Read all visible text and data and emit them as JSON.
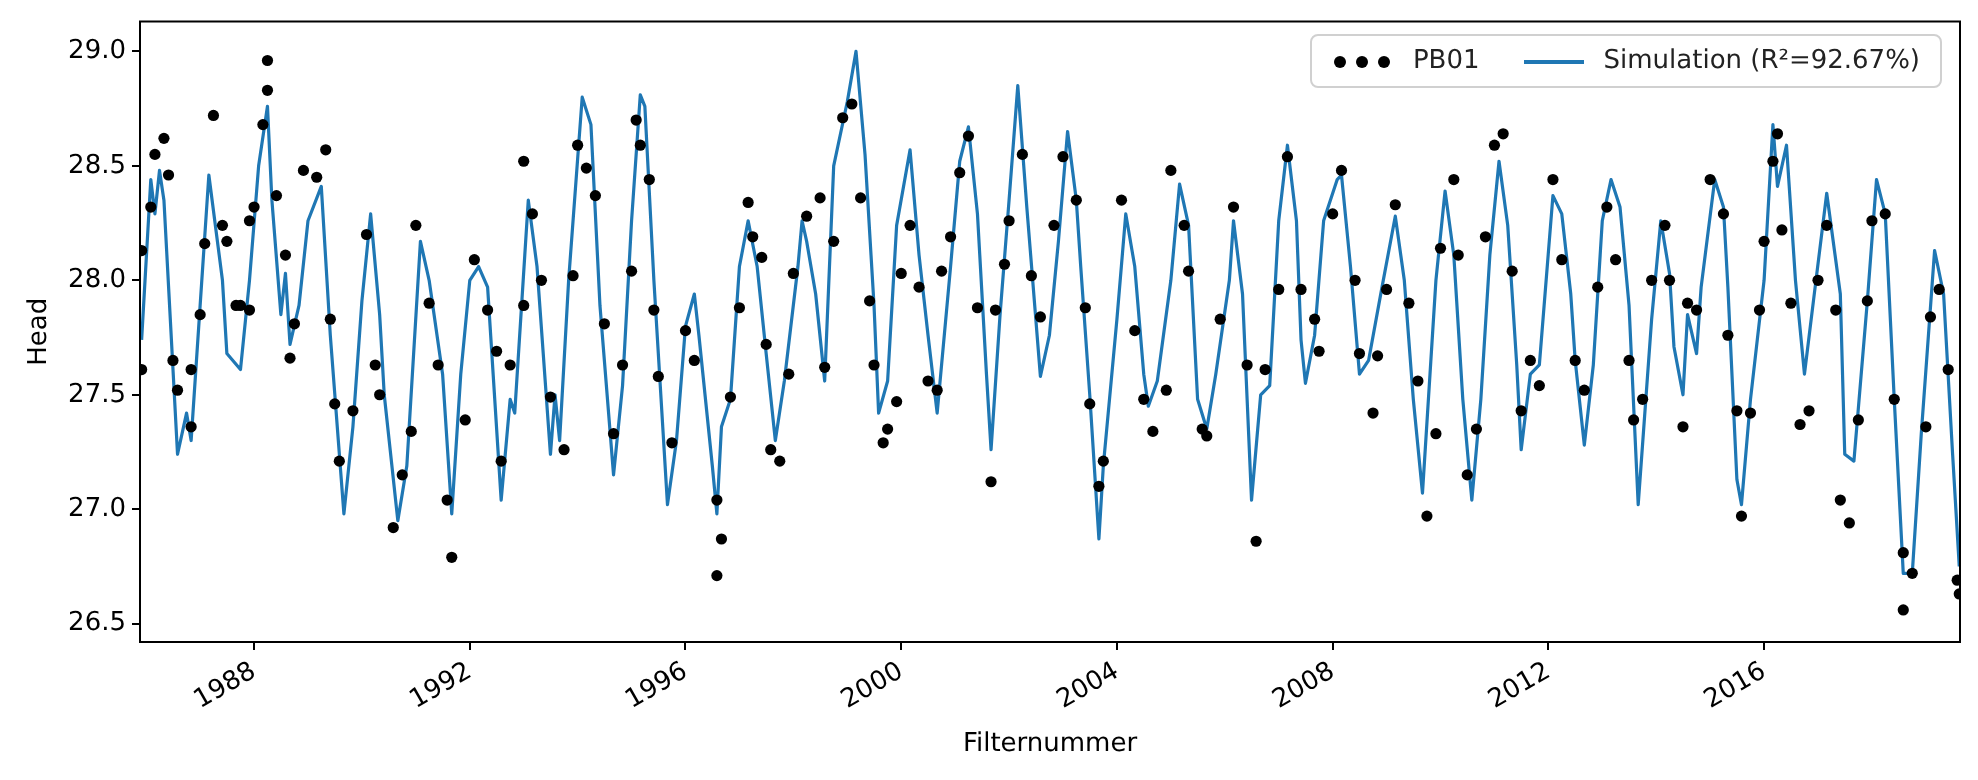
{
  "chart_data": {
    "type": "scatter",
    "xlabel": "Filternummer",
    "ylabel": "Head",
    "legend": "top right",
    "xlim": [
      "1985-11-20",
      "2019-08-20"
    ],
    "xticks": [
      "1988",
      "1992",
      "1996",
      "2000",
      "2004",
      "2008",
      "2012",
      "2016"
    ],
    "ylim": [
      26.42,
      29.13
    ],
    "yticks": [
      26.5,
      {
        "value": 27,
        "label": "27.0"
      },
      27.5,
      {
        "value": 28,
        "label": "28.0"
      },
      28.5,
      {
        "value": 29,
        "label": "29.0"
      }
    ],
    "series": [
      {
        "name": "PB01",
        "type": "scatter",
        "marker": "circle",
        "color": "#000000",
        "x": [
          "1985-12",
          "1985-12",
          "1986-03",
          "1986-05",
          "1986-02",
          "1986-06",
          "1986-07",
          "1986-08",
          "1986-11",
          "1986-11",
          "1987-01",
          "1987-02",
          "1987-04",
          "1987-06",
          "1987-07",
          "1987-09",
          "1987-10",
          "1987-12",
          "1987-12",
          "1988-01",
          "1988-03",
          "1988-04",
          "1988-04",
          "1988-06",
          "1988-08",
          "1988-09",
          "1988-10",
          "1988-12",
          "1989-03",
          "1989-05",
          "1989-06",
          "1989-07",
          "1989-08",
          "1989-11",
          "1990-02",
          "1990-04",
          "1990-05",
          "1990-08",
          "1990-10",
          "1990-12",
          "1991-01",
          "1991-04",
          "1991-06",
          "1991-08",
          "1991-09",
          "1991-12",
          "1992-02",
          "1992-05",
          "1992-07",
          "1992-08",
          "1992-10",
          "1993-01",
          "1993-01",
          "1993-03",
          "1993-05",
          "1993-07",
          "1993-10",
          "1993-12",
          "1994-01",
          "1994-03",
          "1994-05",
          "1994-07",
          "1994-09",
          "1994-11",
          "1995-01",
          "1995-02",
          "1995-03",
          "1995-05",
          "1995-06",
          "1995-07",
          "1995-10",
          "1996-01",
          "1996-03",
          "1996-08",
          "1996-08",
          "1996-09",
          "1996-11",
          "1997-01",
          "1997-03",
          "1997-04",
          "1997-06",
          "1997-07",
          "1997-08",
          "1997-10",
          "1997-12",
          "1998-01",
          "1998-04",
          "1998-07",
          "1998-08",
          "1998-10",
          "1998-12",
          "1999-02",
          "1999-04",
          "1999-06",
          "1999-07",
          "1999-09",
          "1999-10",
          "1999-12",
          "2000-01",
          "2000-03",
          "2000-05",
          "2000-07",
          "2000-09",
          "2000-10",
          "2000-12",
          "2001-02",
          "2001-04",
          "2001-06",
          "2001-09",
          "2001-10",
          "2001-12",
          "2002-01",
          "2002-04",
          "2002-06",
          "2002-08",
          "2002-11",
          "2003-01",
          "2003-04",
          "2003-06",
          "2003-07",
          "2003-09",
          "2003-10",
          "2004-02",
          "2004-05",
          "2004-07",
          "2004-09",
          "2004-12",
          "2005-01",
          "2005-04",
          "2005-05",
          "2005-08",
          "2005-09",
          "2005-12",
          "2006-03",
          "2006-06",
          "2006-08",
          "2006-10",
          "2007-01",
          "2007-03",
          "2007-06",
          "2007-09",
          "2007-10",
          "2008-01",
          "2008-03",
          "2008-06",
          "2008-07",
          "2008-10",
          "2008-11",
          "2009-01",
          "2009-03",
          "2009-06",
          "2009-08",
          "2009-10",
          "2009-12",
          "2010-01",
          "2010-04",
          "2010-05",
          "2010-07",
          "2010-09",
          "2010-11",
          "2011-01",
          "2011-03",
          "2011-05",
          "2011-07",
          "2011-09",
          "2011-11",
          "2012-02",
          "2012-04",
          "2012-07",
          "2012-09",
          "2012-12",
          "2013-02",
          "2013-04",
          "2013-07",
          "2013-08",
          "2013-10",
          "2013-12",
          "2014-03",
          "2014-04",
          "2014-07",
          "2014-08",
          "2014-10",
          "2015-01",
          "2015-04",
          "2015-05",
          "2015-07",
          "2015-08",
          "2015-10",
          "2015-12",
          "2016-01",
          "2016-03",
          "2016-04",
          "2016-05",
          "2016-07",
          "2016-09",
          "2016-11",
          "2017-01",
          "2017-03",
          "2017-05",
          "2017-06",
          "2017-08",
          "2017-10",
          "2017-12",
          "2018-01",
          "2018-04",
          "2018-06",
          "2018-08",
          "2018-08",
          "2018-10",
          "2019-01",
          "2019-02",
          "2019-04",
          "2019-06",
          "2019-08-01",
          "2019-08-15"
        ],
        "values": [
          27.61,
          28.13,
          28.55,
          28.62,
          28.32,
          28.46,
          27.65,
          27.52,
          27.36,
          27.61,
          27.85,
          28.16,
          28.72,
          28.24,
          28.17,
          27.89,
          27.89,
          27.87,
          28.26,
          28.32,
          28.68,
          28.83,
          28.96,
          28.37,
          28.11,
          27.66,
          27.81,
          28.48,
          28.45,
          28.57,
          27.83,
          27.46,
          27.21,
          27.43,
          28.2,
          27.63,
          27.5,
          26.92,
          27.15,
          27.34,
          28.24,
          27.9,
          27.63,
          27.04,
          26.79,
          27.39,
          28.09,
          27.87,
          27.69,
          27.21,
          27.63,
          27.89,
          28.52,
          28.29,
          28.0,
          27.49,
          27.26,
          28.02,
          28.59,
          28.49,
          28.37,
          27.81,
          27.33,
          27.63,
          28.04,
          28.7,
          28.59,
          28.44,
          27.87,
          27.58,
          27.29,
          27.78,
          27.65,
          27.04,
          26.71,
          26.87,
          27.49,
          27.88,
          28.34,
          28.19,
          28.1,
          27.72,
          27.26,
          27.21,
          27.59,
          28.03,
          28.28,
          28.36,
          27.62,
          28.17,
          28.71,
          28.77,
          28.36,
          27.91,
          27.63,
          27.29,
          27.35,
          27.47,
          28.03,
          28.24,
          27.97,
          27.56,
          27.52,
          28.04,
          28.19,
          28.47,
          28.63,
          27.88,
          27.12,
          27.87,
          28.07,
          28.26,
          28.55,
          28.02,
          27.84,
          28.24,
          28.54,
          28.35,
          27.88,
          27.46,
          27.1,
          27.21,
          28.35,
          27.78,
          27.48,
          27.34,
          27.52,
          28.48,
          28.24,
          28.04,
          27.35,
          27.32,
          27.83,
          28.32,
          27.63,
          26.86,
          27.61,
          27.96,
          28.54,
          27.96,
          27.83,
          27.69,
          28.29,
          28.48,
          28.0,
          27.68,
          27.42,
          27.67,
          27.96,
          28.33,
          27.9,
          27.56,
          26.97,
          27.33,
          28.14,
          28.44,
          28.11,
          27.15,
          27.35,
          28.19,
          28.59,
          28.64,
          28.04,
          27.43,
          27.65,
          27.54,
          28.44,
          28.09,
          27.65,
          27.52,
          27.97,
          28.32,
          28.09,
          27.65,
          27.39,
          27.48,
          28.0,
          28.24,
          28.0,
          27.36,
          27.9,
          27.87,
          28.44,
          28.29,
          27.76,
          27.43,
          26.97,
          27.42,
          27.87,
          28.17,
          28.52,
          28.64,
          28.22,
          27.9,
          27.37,
          27.43,
          28.0,
          28.24,
          27.87,
          27.04,
          26.94,
          27.39,
          27.91,
          28.26,
          28.29,
          27.48,
          26.81,
          26.56,
          26.72,
          27.36,
          27.84,
          27.96,
          27.61,
          26.69,
          26.63
        ]
      },
      {
        "name": "Simulation (R²=92.67%)",
        "type": "line",
        "marker": "none",
        "color": "#1f77b4",
        "x": [
          "1985-12",
          "1986-02",
          "1986-03",
          "1986-04",
          "1986-05",
          "1986-08",
          "1986-10",
          "1986-11",
          "1987-01",
          "1987-03",
          "1987-06",
          "1987-07",
          "1987-10",
          "1987-12",
          "1988-02",
          "1988-04",
          "1988-05",
          "1988-07",
          "1988-08",
          "1988-09",
          "1988-11",
          "1989-01",
          "1989-04",
          "1989-06",
          "1989-09",
          "1989-11",
          "1990-01",
          "1990-03",
          "1990-05",
          "1990-06",
          "1990-09",
          "1990-11",
          "1991-02",
          "1991-04",
          "1991-07",
          "1991-09",
          "1991-11",
          "1992-01",
          "1992-03",
          "1992-05",
          "1992-08",
          "1992-10",
          "1992-11",
          "1993-02",
          "1993-04",
          "1993-07",
          "1993-08",
          "1993-09",
          "1993-11",
          "1994-02",
          "1994-04",
          "1994-06",
          "1994-09",
          "1994-11",
          "1995-01",
          "1995-03",
          "1995-04",
          "1995-06",
          "1995-09",
          "1995-11",
          "1996-01",
          "1996-03",
          "1996-04",
          "1996-07",
          "1996-08",
          "1996-09",
          "1996-11",
          "1997-01",
          "1997-03",
          "1997-05",
          "1997-07",
          "1997-09",
          "1997-11",
          "1998-02",
          "1998-03",
          "1998-04",
          "1998-06",
          "1998-08",
          "1998-10",
          "1999-01",
          "1999-03",
          "1999-05",
          "1999-07",
          "1999-08",
          "1999-10",
          "1999-12",
          "2000-03",
          "2000-05",
          "2000-07",
          "2000-09",
          "2000-12",
          "2001-02",
          "2001-04",
          "2001-06",
          "2001-08",
          "2001-09",
          "2001-11",
          "2002-01",
          "2002-03",
          "2002-05",
          "2002-07",
          "2002-08",
          "2002-10",
          "2002-12",
          "2003-02",
          "2003-04",
          "2003-05",
          "2003-07",
          "2003-09",
          "2003-10",
          "2004-01",
          "2004-03",
          "2004-05",
          "2004-07",
          "2004-08",
          "2004-10",
          "2005-01",
          "2005-03",
          "2005-05",
          "2005-07",
          "2005-09",
          "2005-11",
          "2006-02",
          "2006-03",
          "2006-05",
          "2006-07",
          "2006-09",
          "2006-11",
          "2007-01",
          "2007-03",
          "2007-05",
          "2007-06",
          "2007-07",
          "2007-09",
          "2007-11",
          "2008-02",
          "2008-03",
          "2008-05",
          "2008-07",
          "2008-09",
          "2008-12",
          "2009-03",
          "2009-05",
          "2009-07",
          "2009-09",
          "2009-12",
          "2010-02",
          "2010-04",
          "2010-06",
          "2010-08",
          "2010-10",
          "2010-12",
          "2011-02",
          "2011-04",
          "2011-06",
          "2011-07",
          "2011-09",
          "2011-11",
          "2012-02",
          "2012-04",
          "2012-06",
          "2012-07",
          "2012-09",
          "2012-11",
          "2013-01",
          "2013-03",
          "2013-05",
          "2013-07",
          "2013-09",
          "2013-12",
          "2014-02",
          "2014-04",
          "2014-05",
          "2014-07",
          "2014-08",
          "2014-10",
          "2014-11",
          "2015-02",
          "2015-04",
          "2015-05",
          "2015-07",
          "2015-08",
          "2015-10",
          "2016-01",
          "2016-03",
          "2016-04",
          "2016-06",
          "2016-08",
          "2016-10",
          "2016-12",
          "2017-03",
          "2017-06",
          "2017-07",
          "2017-09",
          "2017-12",
          "2018-02",
          "2018-04",
          "2018-06",
          "2018-08",
          "2018-10",
          "2018-12",
          "2019-03",
          "2019-05",
          "2019-07",
          "2019-08-15"
        ],
        "values": [
          27.74,
          28.44,
          28.29,
          28.48,
          28.35,
          27.24,
          27.42,
          27.3,
          27.89,
          28.46,
          28.0,
          27.68,
          27.61,
          28.0,
          28.5,
          28.76,
          28.35,
          27.85,
          28.03,
          27.72,
          27.89,
          28.26,
          28.41,
          27.76,
          26.98,
          27.36,
          27.91,
          28.29,
          27.85,
          27.5,
          26.95,
          27.19,
          28.17,
          28.0,
          27.59,
          26.98,
          27.59,
          28.0,
          28.06,
          27.97,
          27.04,
          27.48,
          27.42,
          28.35,
          28.06,
          27.24,
          27.5,
          27.3,
          28.0,
          28.8,
          28.68,
          27.89,
          27.15,
          27.54,
          28.26,
          28.81,
          28.76,
          28.0,
          27.02,
          27.3,
          27.8,
          27.94,
          27.76,
          27.19,
          26.98,
          27.36,
          27.48,
          28.06,
          28.26,
          28.06,
          27.68,
          27.3,
          27.56,
          28.06,
          28.26,
          28.17,
          27.94,
          27.56,
          28.5,
          28.78,
          29.0,
          28.55,
          27.89,
          27.42,
          27.56,
          28.24,
          28.57,
          28.11,
          27.76,
          27.42,
          28.06,
          28.52,
          28.67,
          28.29,
          27.59,
          27.26,
          27.85,
          28.35,
          28.85,
          28.32,
          27.83,
          27.58,
          27.76,
          28.17,
          28.65,
          28.35,
          28.06,
          27.5,
          26.87,
          27.19,
          27.83,
          28.29,
          28.06,
          27.59,
          27.45,
          27.56,
          28.0,
          28.42,
          28.24,
          27.48,
          27.35,
          27.59,
          28.0,
          28.26,
          27.94,
          27.04,
          27.5,
          27.54,
          28.26,
          28.59,
          28.26,
          27.74,
          27.55,
          27.76,
          28.26,
          28.44,
          28.46,
          28.06,
          27.59,
          27.65,
          27.97,
          28.28,
          28.0,
          27.48,
          27.07,
          28.0,
          28.39,
          28.11,
          27.48,
          27.04,
          27.48,
          28.11,
          28.52,
          28.24,
          27.63,
          27.26,
          27.59,
          27.63,
          28.37,
          28.29,
          27.94,
          27.65,
          27.28,
          27.63,
          28.26,
          28.44,
          28.32,
          27.89,
          27.02,
          27.83,
          28.26,
          28.03,
          27.71,
          27.5,
          27.85,
          27.68,
          27.97,
          28.44,
          28.32,
          27.97,
          27.13,
          27.02,
          27.48,
          28.0,
          28.68,
          28.41,
          28.59,
          28.0,
          27.59,
          27.91,
          28.38,
          27.94,
          27.24,
          27.21,
          27.91,
          28.44,
          28.29,
          27.48,
          26.72,
          26.72,
          27.33,
          28.13,
          27.94,
          27.24,
          26.75
        ]
      }
    ]
  }
}
